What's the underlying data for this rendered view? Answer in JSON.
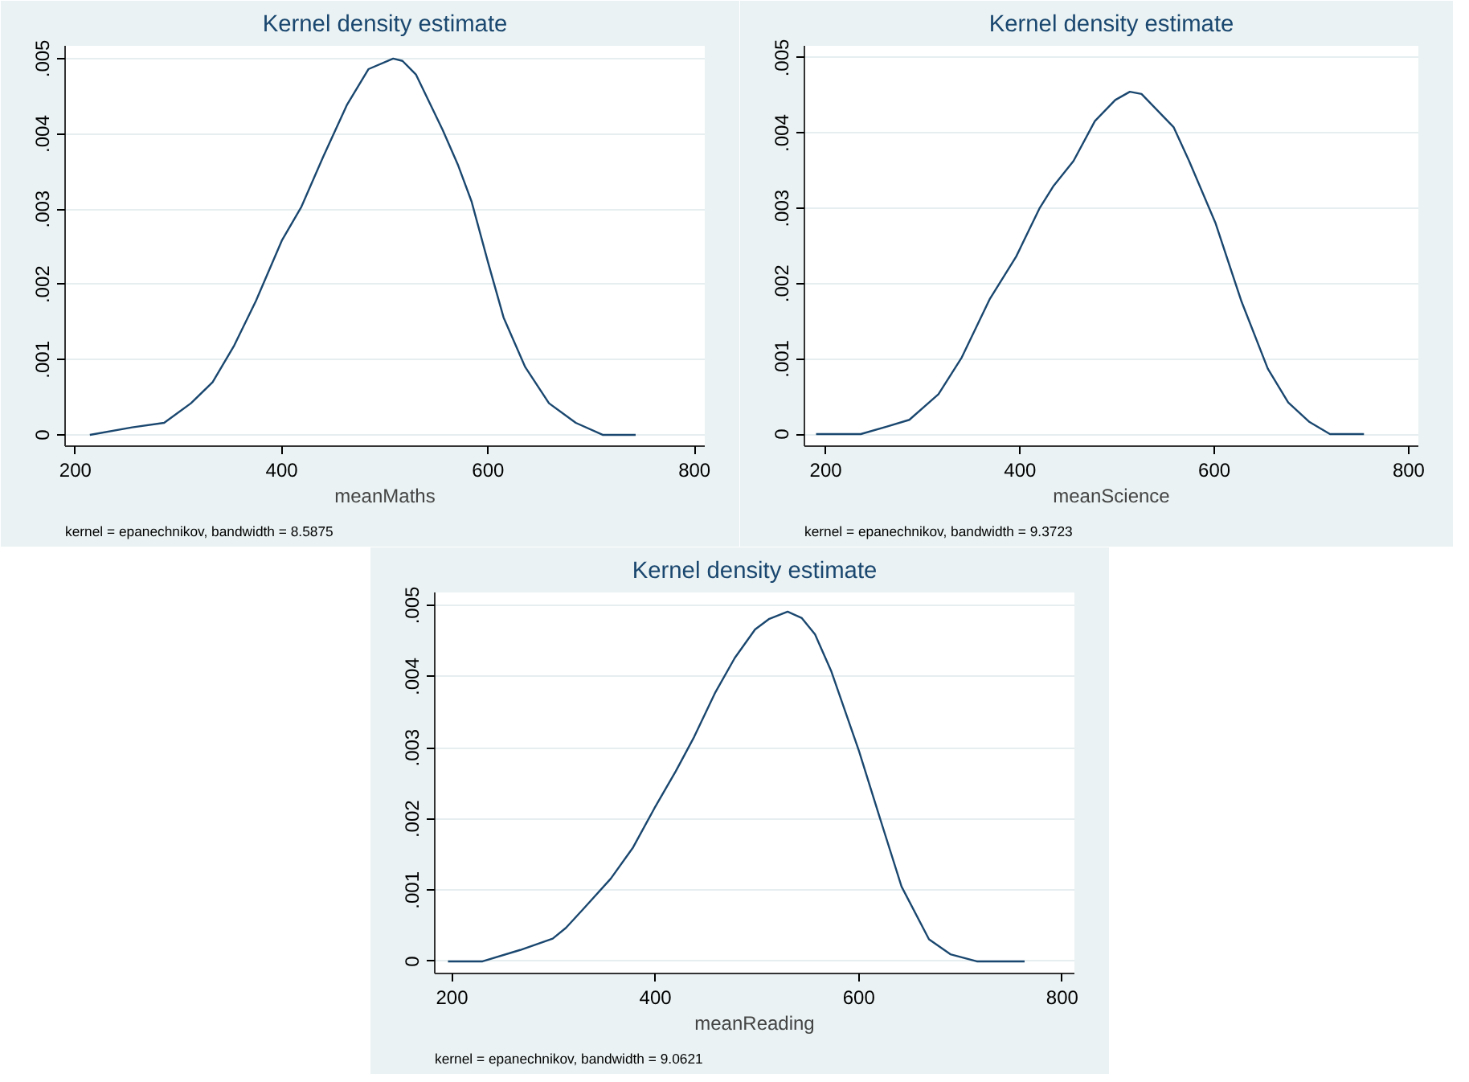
{
  "chart_data": [
    {
      "type": "line",
      "title": "Kernel density estimate",
      "xlabel": "meanMaths",
      "annotations": [
        "kernel = epanechnikov, bandwidth = 8.5875"
      ],
      "series": [
        {
          "color": "#1a476f",
          "x": [
            214,
            255,
            286,
            312,
            333,
            354,
            375,
            400,
            419,
            440,
            463,
            484,
            508,
            517,
            530,
            556,
            571,
            584,
            600,
            615,
            636,
            659,
            685,
            711,
            743
          ],
          "values": [
            0,
            0.0001,
            0.00016,
            0.00042,
            0.0007,
            0.00119,
            0.00178,
            0.00258,
            0.00303,
            0.00369,
            0.00438,
            0.00486,
            0.005,
            0.00497,
            0.00479,
            0.00405,
            0.00358,
            0.0031,
            0.00229,
            0.00156,
            0.0009,
            0.00042,
            0.00016,
            0,
            0
          ]
        }
      ],
      "xlim": [
        190,
        810
      ],
      "xticks": [
        200,
        400,
        600,
        800
      ],
      "ylim": [
        -0.00015,
        0.00517
      ],
      "yticks": [
        0,
        {
          "value": 0.001,
          "label": ".001"
        },
        {
          "value": 0.002,
          "label": ".002"
        },
        {
          "value": 0.003,
          "label": ".003"
        },
        {
          "value": 0.004,
          "label": ".004"
        },
        {
          "value": 0.005,
          "label": ".005"
        }
      ],
      "grid": "y",
      "marker": "none",
      "line_style": "solid"
    },
    {
      "type": "line",
      "title": "Kernel density estimate",
      "xlabel": "meanScience",
      "annotations": [
        "kernel = epanechnikov, bandwidth = 9.3723"
      ],
      "series": [
        {
          "color": "#1a476f",
          "x": [
            190,
            236,
            263,
            286,
            316,
            340,
            369,
            396,
            420,
            434,
            455,
            477,
            498,
            513,
            525,
            558,
            574,
            601,
            628,
            655,
            676,
            698,
            719,
            754
          ],
          "values": [
            0,
            0,
            0.0001,
            0.00019,
            0.00053,
            0.00102,
            0.0018,
            0.00236,
            0.003,
            0.00329,
            0.00363,
            0.00416,
            0.00444,
            0.00455,
            0.00452,
            0.00408,
            0.00363,
            0.00281,
            0.00176,
            0.00087,
            0.00042,
            0.00016,
            0,
            0
          ]
        }
      ],
      "xlim": [
        178,
        810
      ],
      "xticks": [
        200,
        400,
        600,
        800
      ],
      "ylim": [
        -0.00016,
        0.00516
      ],
      "yticks": [
        0,
        {
          "value": 0.001,
          "label": ".001"
        },
        {
          "value": 0.002,
          "label": ".002"
        },
        {
          "value": 0.003,
          "label": ".003"
        },
        {
          "value": 0.004,
          "label": ".004"
        },
        {
          "value": 0.005,
          "label": ".005"
        }
      ],
      "grid": "y",
      "marker": "none",
      "line_style": "solid"
    },
    {
      "type": "line",
      "title": "Kernel density estimate",
      "xlabel": "meanReading",
      "annotations": [
        "kernel = epanechnikov, bandwidth = 9.0621"
      ],
      "series": [
        {
          "color": "#1a476f",
          "x": [
            196,
            230,
            267,
            299,
            312,
            330,
            356,
            378,
            399,
            420,
            438,
            459,
            478,
            498,
            512,
            530,
            544,
            557,
            573,
            600,
            621,
            642,
            669,
            690,
            716,
            763
          ],
          "values": [
            0,
            0,
            0.00016,
            0.00032,
            0.00047,
            0.00075,
            0.00116,
            0.0016,
            0.00215,
            0.00267,
            0.00315,
            0.00378,
            0.00426,
            0.00466,
            0.00481,
            0.00491,
            0.00482,
            0.00459,
            0.00407,
            0.00296,
            0.002,
            0.00105,
            0.00031,
            0.0001,
            0,
            0
          ]
        }
      ],
      "xlim": [
        183,
        812
      ],
      "xticks": [
        200,
        400,
        600,
        800
      ],
      "ylim": [
        -0.00017,
        0.00518
      ],
      "yticks": [
        0,
        {
          "value": 0.001,
          "label": ".001"
        },
        {
          "value": 0.002,
          "label": ".002"
        },
        {
          "value": 0.003,
          "label": ".003"
        },
        {
          "value": 0.004,
          "label": ".004"
        },
        {
          "value": 0.005,
          "label": ".005"
        }
      ],
      "grid": "y",
      "marker": "none",
      "line_style": "solid"
    }
  ]
}
